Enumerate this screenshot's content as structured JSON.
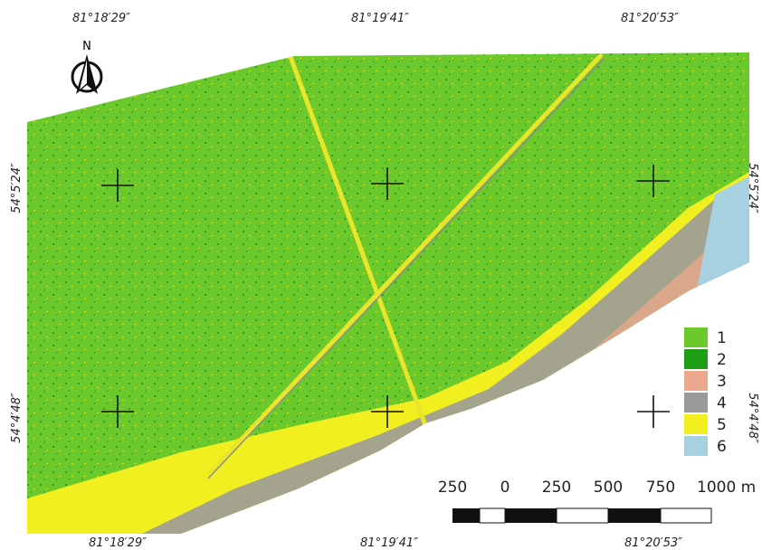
{
  "north_label": "N",
  "top_labels": [
    "81°18′29″",
    "81°19′41″",
    "81°20′53″"
  ],
  "bottom_labels": [
    "81°18′29″",
    "81°19′41″",
    "81°20′53″"
  ],
  "left_labels": [
    "54°5′24″",
    "54°4′48″"
  ],
  "right_labels": [
    "54°5′24″",
    "54°4′48″"
  ],
  "legend": [
    {
      "label": "1",
      "color": "#6cc92c"
    },
    {
      "label": "2",
      "color": "#1e9e14"
    },
    {
      "label": "3",
      "color": "#eba88a"
    },
    {
      "label": "4",
      "color": "#9a9a9a"
    },
    {
      "label": "5",
      "color": "#f2ef20"
    },
    {
      "label": "6",
      "color": "#a7d0e0"
    }
  ],
  "scale_bar": {
    "labels": [
      "250",
      "0",
      "250",
      "500",
      "750",
      "1000 m"
    ]
  }
}
